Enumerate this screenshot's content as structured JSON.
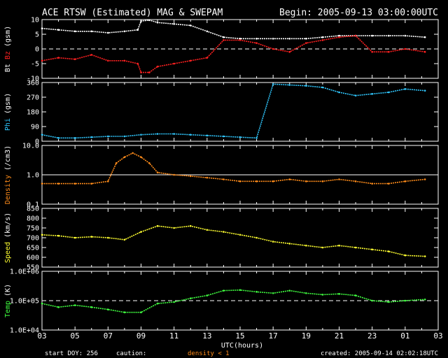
{
  "header": {
    "title": "ACE RTSW (Estimated) MAG & SWEPAM",
    "begin": "Begin: 2005-09-13 03:00:00UTC"
  },
  "footer": {
    "start_doy": "start DOY: 256",
    "caution": "caution:",
    "density_note": "density < 1",
    "created": "created: 2005-09-14 02:02:18UTC"
  },
  "colors": {
    "bt": "#ffffff",
    "bz": "#ff2020",
    "phi": "#30c8ff",
    "density": "#ff8c1a",
    "speed": "#ffff30",
    "temp": "#40ff40"
  },
  "chart_data": {
    "type": "scatter",
    "xlabel": "UTC(hours)",
    "x_ticks": [
      "03",
      "05",
      "07",
      "09",
      "11",
      "13",
      "15",
      "17",
      "19",
      "21",
      "23",
      "01",
      "03"
    ],
    "x_range_hours": [
      3,
      27
    ],
    "panels": [
      {
        "id": "mag",
        "ylabel_parts": [
          "Bt",
          "Bz",
          "(gsm)"
        ],
        "ylim": [
          -10,
          10
        ],
        "y_ticks": [
          "10",
          "5",
          "0",
          "-5",
          "-10"
        ],
        "y_tick_values": [
          10,
          5,
          0,
          -5,
          -10
        ],
        "reference_lines": [
          0
        ],
        "scale": "linear",
        "series": [
          {
            "name": "Bt",
            "color_key": "bt",
            "x": [
              3,
              4,
              5,
              6,
              7,
              8,
              8.8,
              9,
              9.5,
              10,
              11,
              12,
              13,
              14,
              15,
              16,
              17,
              18,
              19,
              20,
              21,
              22,
              23,
              24,
              25,
              26.2
            ],
            "y": [
              7,
              6.5,
              6,
              6,
              5.5,
              6,
              6.5,
              9.5,
              9.8,
              9,
              8.5,
              8,
              6,
              4,
              3.5,
              3.5,
              3.5,
              3.5,
              3.5,
              4,
              4.5,
              4.5,
              4.5,
              4.5,
              4.5,
              4
            ]
          },
          {
            "name": "Bz",
            "color_key": "bz",
            "x": [
              3,
              4,
              5,
              6,
              7,
              8,
              8.8,
              9,
              9.5,
              10,
              11,
              12,
              13,
              14,
              15,
              16,
              17,
              18,
              19,
              20,
              21,
              22,
              23,
              24,
              25,
              26.2
            ],
            "y": [
              -4,
              -3,
              -3.5,
              -2,
              -4,
              -4,
              -5,
              -8,
              -8,
              -6,
              -5,
              -4,
              -3,
              3,
              3,
              2,
              0,
              -1,
              2,
              3,
              4,
              4.5,
              -1,
              -1,
              0,
              -1
            ]
          }
        ]
      },
      {
        "id": "phi",
        "ylabel_parts": [
          "Phi",
          "(gsm)"
        ],
        "ylim": [
          0,
          360
        ],
        "y_ticks": [
          "360",
          "270",
          "180",
          "90",
          "0"
        ],
        "y_tick_values": [
          360,
          270,
          180,
          90,
          0
        ],
        "scale": "linear",
        "series": [
          {
            "name": "Phi",
            "color_key": "phi",
            "x": [
              3,
              4,
              5,
              6,
              7,
              8,
              9,
              10,
              11,
              12,
              13,
              14,
              15,
              16,
              17,
              18,
              19,
              20,
              21,
              22,
              23,
              24,
              25,
              26.2
            ],
            "y": [
              40,
              20,
              20,
              25,
              30,
              30,
              40,
              45,
              45,
              40,
              35,
              30,
              25,
              20,
              350,
              345,
              340,
              330,
              300,
              280,
              290,
              300,
              320,
              310
            ]
          }
        ]
      },
      {
        "id": "density",
        "ylabel_parts": [
          "Density",
          "(/cm3)"
        ],
        "ylim": [
          0.1,
          10
        ],
        "y_ticks": [
          "10.0",
          "1.0",
          "0.1"
        ],
        "y_tick_values": [
          10,
          1,
          0.1
        ],
        "reference_lines": [
          1
        ],
        "scale": "log",
        "series": [
          {
            "name": "Density",
            "color_key": "density",
            "x": [
              3,
              4,
              5,
              6,
              7,
              7.5,
              8,
              8.5,
              9,
              9.5,
              10,
              11,
              12,
              13,
              14,
              15,
              16,
              17,
              18,
              19,
              20,
              21,
              22,
              23,
              24,
              25,
              26.2
            ],
            "y": [
              0.5,
              0.5,
              0.5,
              0.5,
              0.6,
              2.5,
              4,
              5.5,
              4,
              2.5,
              1.2,
              1,
              0.9,
              0.8,
              0.7,
              0.6,
              0.6,
              0.6,
              0.7,
              0.6,
              0.6,
              0.7,
              0.6,
              0.5,
              0.5,
              0.6,
              0.7
            ]
          }
        ]
      },
      {
        "id": "speed",
        "ylabel_parts": [
          "Speed",
          "(km/s)"
        ],
        "ylim": [
          550,
          850
        ],
        "y_ticks": [
          "850",
          "800",
          "750",
          "700",
          "650",
          "600",
          "550"
        ],
        "y_tick_values": [
          850,
          800,
          750,
          700,
          650,
          600,
          550
        ],
        "scale": "linear",
        "series": [
          {
            "name": "Speed",
            "color_key": "speed",
            "x": [
              3,
              4,
              5,
              6,
              7,
              8,
              9,
              10,
              11,
              12,
              13,
              14,
              15,
              16,
              17,
              18,
              19,
              20,
              21,
              22,
              23,
              24,
              25,
              26.2
            ],
            "y": [
              715,
              710,
              700,
              705,
              700,
              690,
              730,
              760,
              750,
              760,
              740,
              730,
              715,
              700,
              680,
              670,
              660,
              650,
              660,
              650,
              640,
              630,
              610,
              605
            ]
          }
        ]
      },
      {
        "id": "temp",
        "ylabel_parts": [
          "Temp",
          "(K)"
        ],
        "ylim": [
          10000,
          1000000
        ],
        "y_ticks": [
          "1.0E+06",
          "1.0E+05",
          "1.0E+04"
        ],
        "y_tick_values": [
          1000000,
          100000,
          10000
        ],
        "reference_lines": [
          100000
        ],
        "scale": "log",
        "series": [
          {
            "name": "Temp",
            "color_key": "temp",
            "x": [
              3,
              4,
              5,
              6,
              7,
              8,
              9,
              10,
              11,
              12,
              13,
              14,
              15,
              16,
              17,
              18,
              19,
              20,
              21,
              22,
              23,
              24,
              25,
              26.2
            ],
            "y": [
              80000,
              60000,
              70000,
              60000,
              50000,
              40000,
              40000,
              80000,
              90000,
              120000,
              150000,
              220000,
              230000,
              200000,
              180000,
              220000,
              180000,
              160000,
              170000,
              150000,
              100000,
              90000,
              100000,
              110000
            ]
          }
        ]
      }
    ]
  }
}
